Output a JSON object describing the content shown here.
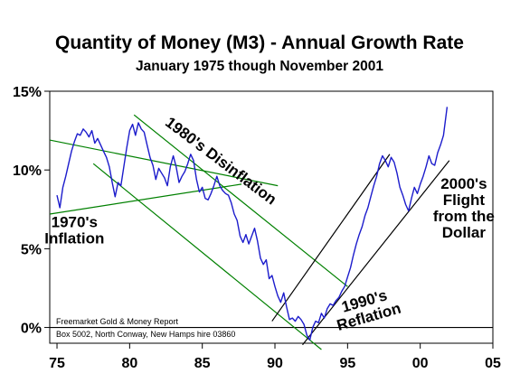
{
  "chart_data": {
    "type": "line",
    "title": "Quantity of Money (M3) - Annual Growth Rate",
    "subtitle": "January 1975 though November 2001",
    "xlabel": "",
    "ylabel": "",
    "xlim": [
      1974.5,
      2005
    ],
    "ylim": [
      -1,
      15
    ],
    "x_ticks": [
      75,
      80,
      85,
      90,
      95,
      0,
      5
    ],
    "x_tick_labels": [
      "75",
      "80",
      "85",
      "90",
      "95",
      "00",
      "05"
    ],
    "y_ticks": [
      0,
      5,
      10,
      15
    ],
    "y_tick_labels": [
      "0%",
      "5%",
      "10%",
      "15%"
    ],
    "grid": false,
    "colors": {
      "series": "#1c1ccc",
      "channel_green": "#008000",
      "channel_black": "#000000"
    },
    "series": [
      {
        "name": "",
        "x": [
          1975.0,
          1975.2,
          1975.4,
          1975.6,
          1975.8,
          1976.0,
          1976.2,
          1976.4,
          1976.6,
          1976.8,
          1977.0,
          1977.2,
          1977.4,
          1977.6,
          1977.8,
          1978.0,
          1978.2,
          1978.4,
          1978.6,
          1978.8,
          1979.0,
          1979.2,
          1979.4,
          1979.6,
          1979.8,
          1980.0,
          1980.2,
          1980.4,
          1980.6,
          1980.8,
          1981.0,
          1981.2,
          1981.4,
          1981.6,
          1981.8,
          1982.0,
          1982.2,
          1982.4,
          1982.6,
          1982.8,
          1983.0,
          1983.2,
          1983.4,
          1983.6,
          1983.8,
          1984.0,
          1984.2,
          1984.4,
          1984.6,
          1984.8,
          1985.0,
          1985.2,
          1985.4,
          1985.6,
          1985.8,
          1986.0,
          1986.2,
          1986.4,
          1986.6,
          1986.8,
          1987.0,
          1987.2,
          1987.4,
          1987.6,
          1987.8,
          1988.0,
          1988.2,
          1988.4,
          1988.6,
          1988.8,
          1989.0,
          1989.2,
          1989.4,
          1989.6,
          1989.8,
          1990.0,
          1990.2,
          1990.4,
          1990.6,
          1990.8,
          1991.0,
          1991.2,
          1991.4,
          1991.6,
          1991.8,
          1992.0,
          1992.2,
          1992.4,
          1992.6,
          1992.8,
          1993.0,
          1993.2,
          1993.4,
          1993.6,
          1993.8,
          1994.0,
          1994.2,
          1994.4,
          1994.6,
          1994.8,
          1995.0,
          1995.2,
          1995.4,
          1995.6,
          1995.8,
          1996.0,
          1996.2,
          1996.4,
          1996.6,
          1996.8,
          1997.0,
          1997.2,
          1997.4,
          1997.6,
          1997.8,
          1998.0,
          1998.2,
          1998.4,
          1998.6,
          1998.8,
          1999.0,
          1999.2,
          1999.4,
          1999.6,
          1999.8,
          2000.0,
          2000.2,
          2000.4,
          2000.6,
          2000.8,
          2001.0,
          2001.2,
          2001.4,
          2001.6,
          2001.85
        ],
        "y": [
          8.4,
          7.6,
          8.9,
          9.6,
          10.4,
          11.2,
          11.8,
          12.3,
          12.2,
          12.6,
          12.4,
          12.1,
          12.5,
          11.7,
          12.0,
          11.6,
          11.2,
          10.8,
          10.2,
          9.2,
          8.3,
          9.2,
          9.0,
          10.2,
          11.4,
          12.5,
          12.9,
          12.2,
          13.0,
          12.6,
          12.4,
          11.6,
          10.8,
          10.3,
          9.4,
          10.1,
          9.8,
          9.5,
          9.0,
          10.2,
          10.9,
          10.2,
          9.2,
          9.6,
          9.9,
          10.4,
          11.0,
          10.6,
          9.4,
          8.6,
          8.9,
          8.2,
          8.1,
          8.5,
          9.0,
          9.6,
          9.0,
          8.7,
          8.5,
          8.4,
          7.9,
          7.2,
          6.8,
          5.8,
          5.4,
          5.9,
          5.3,
          5.8,
          6.3,
          5.5,
          4.4,
          4.0,
          4.3,
          3.1,
          3.3,
          2.6,
          2.0,
          1.6,
          2.2,
          1.3,
          0.5,
          0.6,
          0.4,
          0.7,
          0.5,
          0.2,
          -0.5,
          -0.8,
          0.0,
          0.4,
          0.3,
          0.9,
          0.6,
          1.2,
          1.5,
          1.4,
          1.7,
          1.9,
          2.3,
          2.6,
          3.2,
          3.8,
          4.6,
          5.3,
          5.9,
          6.4,
          7.1,
          7.6,
          8.3,
          9.0,
          9.6,
          10.4,
          10.9,
          10.6,
          10.2,
          10.8,
          10.5,
          9.8,
          8.9,
          8.4,
          7.8,
          7.4,
          8.2,
          8.9,
          8.5,
          9.1,
          9.6,
          10.2,
          10.9,
          10.4,
          10.3,
          11.1,
          11.6,
          12.2,
          14.0
        ],
        "color": "#1c1ccc"
      }
    ],
    "channels": [
      {
        "color": "#008000",
        "x": [
          1974.5,
          1990.2
        ],
        "y": [
          11.9,
          9.0
        ]
      },
      {
        "color": "#008000",
        "x": [
          1974.5,
          1987.7
        ],
        "y": [
          7.2,
          9.1
        ]
      },
      {
        "color": "#008000",
        "x": [
          1980.3,
          1995.0
        ],
        "y": [
          13.5,
          2.6
        ]
      },
      {
        "color": "#008000",
        "x": [
          1977.5,
          1993.2
        ],
        "y": [
          10.4,
          -1.4
        ]
      },
      {
        "color": "#000000",
        "x": [
          1989.8,
          1997.9
        ],
        "y": [
          0.4,
          11.0
        ]
      },
      {
        "color": "#000000",
        "x": [
          1991.9,
          2002.0
        ],
        "y": [
          -1.1,
          10.6
        ]
      }
    ],
    "annotations": [
      {
        "text": "1980's Disinflation",
        "x": 1986.3,
        "y": 10.6,
        "rotate": 37
      },
      {
        "lines": [
          "1970's",
          "Inflation"
        ],
        "x": 1976.2,
        "y": 6.2
      },
      {
        "lines": [
          "1990's",
          "Reflation"
        ],
        "x": 1996.3,
        "y": 1.2,
        "rotate": -16
      },
      {
        "lines": [
          "2000's",
          "Flight",
          "from the",
          "Dollar"
        ],
        "x": 2003.0,
        "y": 7.6
      }
    ],
    "source_lines": [
      "Freemarket Gold & Money Report",
      "Box 5002, North Conway, New Hamps hire 03860"
    ]
  }
}
